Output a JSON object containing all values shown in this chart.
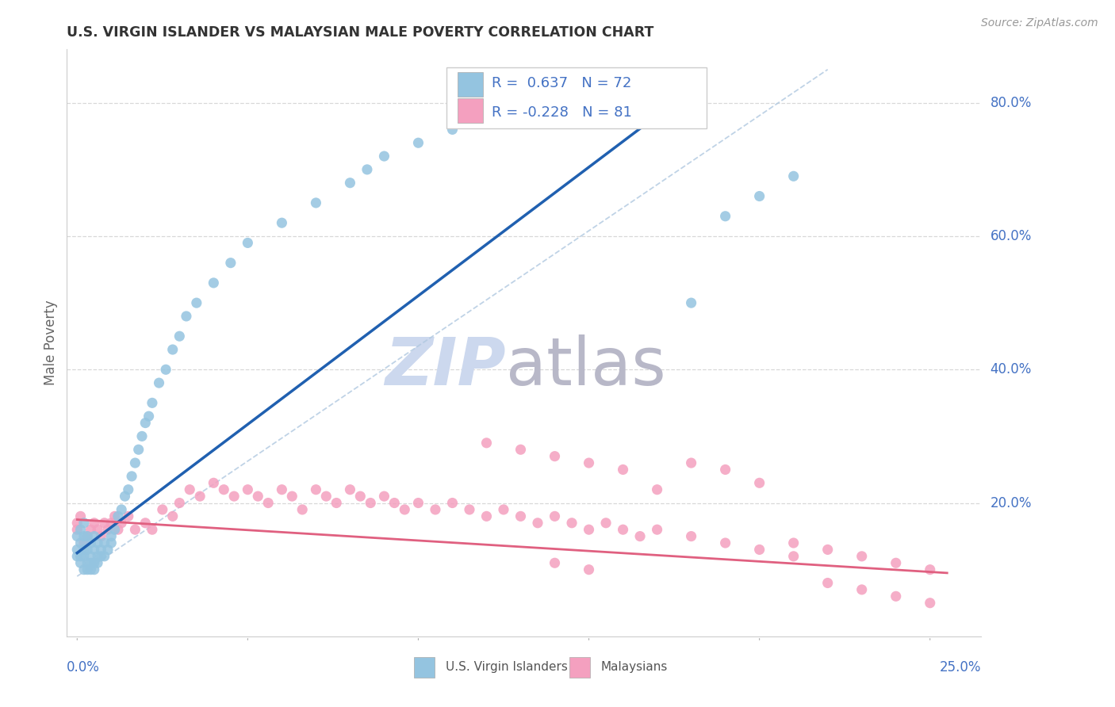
{
  "title": "U.S. VIRGIN ISLANDER VS MALAYSIAN MALE POVERTY CORRELATION CHART",
  "source": "Source: ZipAtlas.com",
  "ylabel": "Male Poverty",
  "ylim": [
    0.0,
    0.88
  ],
  "xlim": [
    -0.003,
    0.265
  ],
  "blue_R": 0.637,
  "blue_N": 72,
  "pink_R": -0.228,
  "pink_N": 81,
  "blue_color": "#94c4e0",
  "pink_color": "#f4a0bf",
  "blue_line_color": "#2060b0",
  "pink_line_color": "#e06080",
  "dash_color": "#b0c8e0",
  "grid_color": "#d8d8d8",
  "legend_label_blue": "U.S. Virgin Islanders",
  "legend_label_pink": "Malaysians",
  "right_label_color": "#4472c4",
  "watermark_zip_color": "#ccd8ee",
  "watermark_atlas_color": "#b8b8c8",
  "blue_scatter_x": [
    0.0,
    0.0,
    0.0,
    0.001,
    0.001,
    0.001,
    0.001,
    0.002,
    0.002,
    0.002,
    0.002,
    0.002,
    0.003,
    0.003,
    0.003,
    0.003,
    0.004,
    0.004,
    0.004,
    0.004,
    0.005,
    0.005,
    0.005,
    0.005,
    0.006,
    0.006,
    0.006,
    0.007,
    0.007,
    0.008,
    0.008,
    0.009,
    0.01,
    0.01,
    0.011,
    0.012,
    0.013,
    0.014,
    0.015,
    0.016,
    0.017,
    0.018,
    0.019,
    0.02,
    0.021,
    0.022,
    0.024,
    0.026,
    0.028,
    0.03,
    0.032,
    0.035,
    0.04,
    0.045,
    0.05,
    0.06,
    0.07,
    0.08,
    0.085,
    0.09,
    0.1,
    0.11,
    0.12,
    0.13,
    0.14,
    0.15,
    0.16,
    0.17,
    0.18,
    0.19,
    0.2,
    0.21
  ],
  "blue_scatter_y": [
    0.12,
    0.13,
    0.15,
    0.11,
    0.12,
    0.14,
    0.16,
    0.1,
    0.12,
    0.13,
    0.15,
    0.17,
    0.1,
    0.11,
    0.13,
    0.15,
    0.1,
    0.11,
    0.12,
    0.14,
    0.1,
    0.11,
    0.13,
    0.15,
    0.11,
    0.12,
    0.14,
    0.12,
    0.13,
    0.12,
    0.14,
    0.13,
    0.14,
    0.15,
    0.16,
    0.18,
    0.19,
    0.21,
    0.22,
    0.24,
    0.26,
    0.28,
    0.3,
    0.32,
    0.33,
    0.35,
    0.38,
    0.4,
    0.43,
    0.45,
    0.48,
    0.5,
    0.53,
    0.56,
    0.59,
    0.62,
    0.65,
    0.68,
    0.7,
    0.72,
    0.74,
    0.76,
    0.78,
    0.79,
    0.8,
    0.81,
    0.82,
    0.83,
    0.5,
    0.63,
    0.66,
    0.69
  ],
  "pink_scatter_x": [
    0.0,
    0.0,
    0.001,
    0.002,
    0.003,
    0.004,
    0.005,
    0.006,
    0.007,
    0.008,
    0.009,
    0.01,
    0.011,
    0.012,
    0.013,
    0.015,
    0.017,
    0.02,
    0.022,
    0.025,
    0.028,
    0.03,
    0.033,
    0.036,
    0.04,
    0.043,
    0.046,
    0.05,
    0.053,
    0.056,
    0.06,
    0.063,
    0.066,
    0.07,
    0.073,
    0.076,
    0.08,
    0.083,
    0.086,
    0.09,
    0.093,
    0.096,
    0.1,
    0.105,
    0.11,
    0.115,
    0.12,
    0.125,
    0.13,
    0.135,
    0.14,
    0.145,
    0.15,
    0.155,
    0.16,
    0.165,
    0.17,
    0.18,
    0.19,
    0.2,
    0.21,
    0.22,
    0.23,
    0.24,
    0.25,
    0.22,
    0.23,
    0.24,
    0.25,
    0.18,
    0.19,
    0.2,
    0.21,
    0.14,
    0.15,
    0.16,
    0.17,
    0.12,
    0.13,
    0.14,
    0.15
  ],
  "pink_scatter_y": [
    0.16,
    0.17,
    0.18,
    0.14,
    0.15,
    0.16,
    0.17,
    0.16,
    0.15,
    0.17,
    0.16,
    0.17,
    0.18,
    0.16,
    0.17,
    0.18,
    0.16,
    0.17,
    0.16,
    0.19,
    0.18,
    0.2,
    0.22,
    0.21,
    0.23,
    0.22,
    0.21,
    0.22,
    0.21,
    0.2,
    0.22,
    0.21,
    0.19,
    0.22,
    0.21,
    0.2,
    0.22,
    0.21,
    0.2,
    0.21,
    0.2,
    0.19,
    0.2,
    0.19,
    0.2,
    0.19,
    0.18,
    0.19,
    0.18,
    0.17,
    0.18,
    0.17,
    0.16,
    0.17,
    0.16,
    0.15,
    0.16,
    0.15,
    0.14,
    0.13,
    0.12,
    0.13,
    0.12,
    0.11,
    0.1,
    0.08,
    0.07,
    0.06,
    0.05,
    0.26,
    0.25,
    0.23,
    0.14,
    0.27,
    0.26,
    0.25,
    0.22,
    0.29,
    0.28,
    0.11,
    0.1
  ]
}
